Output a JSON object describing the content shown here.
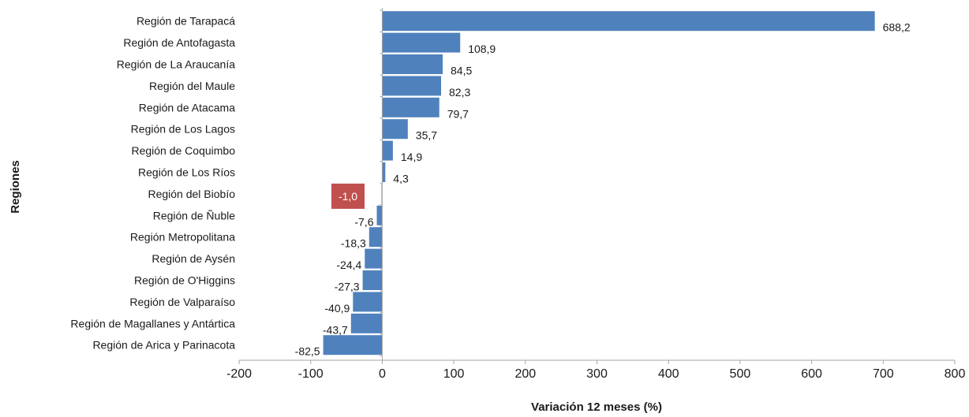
{
  "chart_data": {
    "type": "bar",
    "orientation": "horizontal",
    "title": "",
    "xlabel": "Variación 12 meses (%)",
    "ylabel": "Regiones",
    "xlim": [
      -200,
      800
    ],
    "xticks": [
      -200,
      -100,
      0,
      100,
      200,
      300,
      400,
      500,
      600,
      700,
      800
    ],
    "grid": false,
    "legend": "none",
    "categories": [
      "Región de Tarapacá",
      "Región de Antofagasta",
      "Región de La Araucanía",
      "Región del Maule",
      "Región de Atacama",
      "Región de Los Lagos",
      "Región de Coquimbo",
      "Región de Los Ríos",
      "Región del Biobío",
      "Región de Ñuble",
      "Región Metropolitana",
      "Región de Aysén",
      "Región de O'Higgins",
      "Región de Valparaíso",
      "Región de Magallanes y Antártica",
      "Región de Arica y Parinacota"
    ],
    "values": [
      688.2,
      108.9,
      84.5,
      82.3,
      79.7,
      35.7,
      14.9,
      4.3,
      -1.0,
      -7.6,
      -18.3,
      -24.4,
      -27.3,
      -40.9,
      -43.7,
      -82.5
    ],
    "data_labels": [
      "688,2",
      "108,9",
      "84,5",
      "82,3",
      "79,7",
      "35,7",
      "14,9",
      "4,3",
      "-1,0",
      "-7,6",
      "-18,3",
      "-24,4",
      "-27,3",
      "-40,9",
      "-43,7",
      "-82,5"
    ],
    "tick_labels": [
      "-200",
      "-100",
      "0",
      "100",
      "200",
      "300",
      "400",
      "500",
      "600",
      "700",
      "800"
    ],
    "highlight_category": "Región del Biobío",
    "colors": {
      "bar": "#4f81bd",
      "highlight_label_bg": "#c0504d",
      "axis": "#a6a6a6"
    }
  }
}
